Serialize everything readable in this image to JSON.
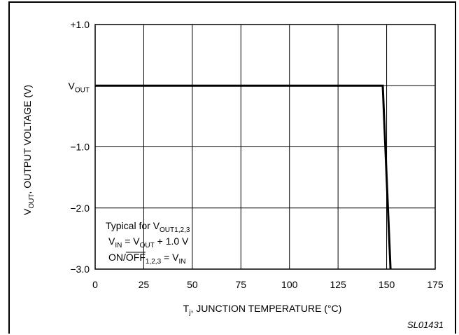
{
  "chart_data": {
    "type": "line",
    "x": [
      0,
      148,
      152
    ],
    "series": [
      {
        "values": [
          0,
          0,
          -3.0
        ]
      }
    ],
    "xlim": [
      0,
      175
    ],
    "ylim": [
      -3.0,
      1.0
    ],
    "x_ticks": [
      "0",
      "25",
      "50",
      "75",
      "100",
      "125",
      "150",
      "175"
    ],
    "y_ticks": [
      {
        "value": 1.0,
        "label": "+1.0"
      },
      {
        "value": 0,
        "label": "V",
        "sub": "OUT"
      },
      {
        "value": -1.0,
        "label": "−1.0"
      },
      {
        "value": -2.0,
        "label": "−2.0"
      },
      {
        "value": -3.0,
        "label": "−3.0"
      }
    ],
    "xlabel": {
      "main": "T",
      "sub": "j",
      "rest": ", JUNCTION TEMPERATURE (°C)"
    },
    "ylabel": {
      "main": "V",
      "sub": "OUT",
      "rest": ", OUTPUT VOLTAGE (V)"
    },
    "grid": true,
    "annotation": {
      "line1": {
        "text": "Typical for V",
        "sub": "OUT1,2,3"
      },
      "line2": {
        "a": "V",
        "a_sub": "IN",
        "b": " = V",
        "b_sub": "OUT",
        "c": " + 1.0 V"
      },
      "line3": {
        "a": "ON/",
        "over": "OFF",
        "sub": "1,2,3",
        "b": " = V",
        "b_sub": "IN"
      }
    },
    "figure_id": "SL01431"
  }
}
